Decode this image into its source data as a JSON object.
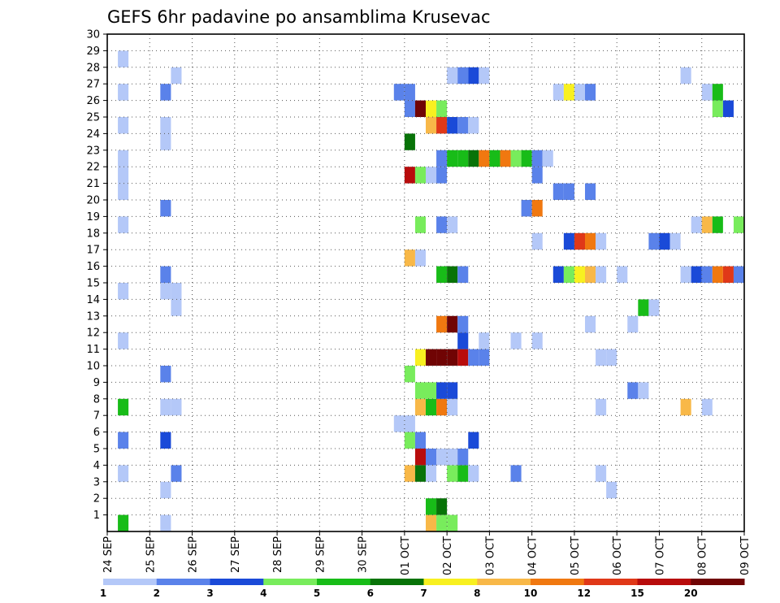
{
  "chart_data": {
    "type": "heatmap",
    "title": "GEFS 6hr padavine po ansamblima Krusevac",
    "xlabel": "",
    "ylabel": "",
    "x_ticks": [
      "24 SEP",
      "25 SEP",
      "26 SEP",
      "27 SEP",
      "28 SEP",
      "29 SEP",
      "30 SEP",
      "01 OCT",
      "02 OCT",
      "03 OCT",
      "04 OCT",
      "05 OCT",
      "06 OCT",
      "07 OCT",
      "08 OCT",
      "09 OCT"
    ],
    "x_range": [
      "24 SEP 00Z",
      "09 OCT 00Z"
    ],
    "time_step": "6hr",
    "y_ticks": [
      1,
      2,
      3,
      4,
      5,
      6,
      7,
      8,
      9,
      10,
      11,
      12,
      13,
      14,
      15,
      16,
      17,
      18,
      19,
      20,
      21,
      22,
      23,
      24,
      25,
      26,
      27,
      28,
      29,
      30
    ],
    "y_range": [
      0,
      30
    ],
    "grid": "dotted",
    "colorbar": {
      "labels": [
        "1",
        "2",
        "3",
        "4",
        "5",
        "6",
        "7",
        "8",
        "10",
        "12",
        "15",
        "20"
      ],
      "colors": [
        "#b4c8f8",
        "#5a82ea",
        "#1a4ad8",
        "#78ec5c",
        "#18bc18",
        "#087308",
        "#f8f020",
        "#f8b848",
        "#f07810",
        "#e03818",
        "#b80c0c",
        "#700404"
      ]
    },
    "cells": [
      {
        "step": 1,
        "member": 0,
        "class": 4
      },
      {
        "step": 5,
        "member": 0,
        "class": 0
      },
      {
        "step": 30,
        "member": 0,
        "class": 7
      },
      {
        "step": 31,
        "member": 0,
        "class": 3
      },
      {
        "step": 32,
        "member": 0,
        "class": 3
      },
      {
        "step": 30,
        "member": 1,
        "class": 4
      },
      {
        "step": 31,
        "member": 1,
        "class": 5
      },
      {
        "step": 5,
        "member": 2,
        "class": 0
      },
      {
        "step": 47,
        "member": 2,
        "class": 0
      },
      {
        "step": 1,
        "member": 3,
        "class": 0
      },
      {
        "step": 6,
        "member": 3,
        "class": 1
      },
      {
        "step": 28,
        "member": 3,
        "class": 7
      },
      {
        "step": 29,
        "member": 3,
        "class": 5
      },
      {
        "step": 30,
        "member": 3,
        "class": 0
      },
      {
        "step": 32,
        "member": 3,
        "class": 3
      },
      {
        "step": 33,
        "member": 3,
        "class": 4
      },
      {
        "step": 34,
        "member": 3,
        "class": 0
      },
      {
        "step": 38,
        "member": 3,
        "class": 1
      },
      {
        "step": 46,
        "member": 3,
        "class": 0
      },
      {
        "step": 29,
        "member": 4,
        "class": 10
      },
      {
        "step": 30,
        "member": 4,
        "class": 1
      },
      {
        "step": 31,
        "member": 4,
        "class": 0
      },
      {
        "step": 32,
        "member": 4,
        "class": 0
      },
      {
        "step": 33,
        "member": 4,
        "class": 1
      },
      {
        "step": 1,
        "member": 5,
        "class": 1
      },
      {
        "step": 5,
        "member": 5,
        "class": 2
      },
      {
        "step": 28,
        "member": 5,
        "class": 3
      },
      {
        "step": 29,
        "member": 5,
        "class": 1
      },
      {
        "step": 34,
        "member": 5,
        "class": 2
      },
      {
        "step": 27,
        "member": 6,
        "class": 0
      },
      {
        "step": 28,
        "member": 6,
        "class": 0
      },
      {
        "step": 1,
        "member": 7,
        "class": 4
      },
      {
        "step": 5,
        "member": 7,
        "class": 0
      },
      {
        "step": 6,
        "member": 7,
        "class": 0
      },
      {
        "step": 29,
        "member": 7,
        "class": 7
      },
      {
        "step": 30,
        "member": 7,
        "class": 4
      },
      {
        "step": 31,
        "member": 7,
        "class": 8
      },
      {
        "step": 32,
        "member": 7,
        "class": 0
      },
      {
        "step": 46,
        "member": 7,
        "class": 0
      },
      {
        "step": 54,
        "member": 7,
        "class": 7
      },
      {
        "step": 56,
        "member": 7,
        "class": 0
      },
      {
        "step": 29,
        "member": 8,
        "class": 3
      },
      {
        "step": 30,
        "member": 8,
        "class": 3
      },
      {
        "step": 31,
        "member": 8,
        "class": 2
      },
      {
        "step": 32,
        "member": 8,
        "class": 2
      },
      {
        "step": 49,
        "member": 8,
        "class": 1
      },
      {
        "step": 50,
        "member": 8,
        "class": 0
      },
      {
        "step": 5,
        "member": 9,
        "class": 1
      },
      {
        "step": 28,
        "member": 9,
        "class": 3
      },
      {
        "step": 29,
        "member": 10,
        "class": 6
      },
      {
        "step": 30,
        "member": 10,
        "class": 11
      },
      {
        "step": 31,
        "member": 10,
        "class": 11
      },
      {
        "step": 32,
        "member": 10,
        "class": 11
      },
      {
        "step": 33,
        "member": 10,
        "class": 10
      },
      {
        "step": 34,
        "member": 10,
        "class": 1
      },
      {
        "step": 35,
        "member": 10,
        "class": 1
      },
      {
        "step": 46,
        "member": 10,
        "class": 0
      },
      {
        "step": 47,
        "member": 10,
        "class": 0
      },
      {
        "step": 1,
        "member": 11,
        "class": 0
      },
      {
        "step": 33,
        "member": 11,
        "class": 2
      },
      {
        "step": 35,
        "member": 11,
        "class": 0
      },
      {
        "step": 38,
        "member": 11,
        "class": 0
      },
      {
        "step": 40,
        "member": 11,
        "class": 0
      },
      {
        "step": 31,
        "member": 12,
        "class": 8
      },
      {
        "step": 32,
        "member": 12,
        "class": 11
      },
      {
        "step": 33,
        "member": 12,
        "class": 1
      },
      {
        "step": 45,
        "member": 12,
        "class": 0
      },
      {
        "step": 49,
        "member": 12,
        "class": 0
      },
      {
        "step": 6,
        "member": 13,
        "class": 0
      },
      {
        "step": 50,
        "member": 13,
        "class": 4
      },
      {
        "step": 51,
        "member": 13,
        "class": 0
      },
      {
        "step": 1,
        "member": 14,
        "class": 0
      },
      {
        "step": 5,
        "member": 14,
        "class": 0
      },
      {
        "step": 6,
        "member": 14,
        "class": 0
      },
      {
        "step": 5,
        "member": 15,
        "class": 1
      },
      {
        "step": 31,
        "member": 15,
        "class": 4
      },
      {
        "step": 32,
        "member": 15,
        "class": 5
      },
      {
        "step": 33,
        "member": 15,
        "class": 1
      },
      {
        "step": 42,
        "member": 15,
        "class": 2
      },
      {
        "step": 43,
        "member": 15,
        "class": 3
      },
      {
        "step": 44,
        "member": 15,
        "class": 6
      },
      {
        "step": 45,
        "member": 15,
        "class": 7
      },
      {
        "step": 46,
        "member": 15,
        "class": 0
      },
      {
        "step": 48,
        "member": 15,
        "class": 0
      },
      {
        "step": 54,
        "member": 15,
        "class": 0
      },
      {
        "step": 55,
        "member": 15,
        "class": 2
      },
      {
        "step": 56,
        "member": 15,
        "class": 1
      },
      {
        "step": 57,
        "member": 15,
        "class": 8
      },
      {
        "step": 58,
        "member": 15,
        "class": 9
      },
      {
        "step": 59,
        "member": 15,
        "class": 1
      },
      {
        "step": 28,
        "member": 16,
        "class": 7
      },
      {
        "step": 29,
        "member": 16,
        "class": 0
      },
      {
        "step": 40,
        "member": 17,
        "class": 0
      },
      {
        "step": 43,
        "member": 17,
        "class": 2
      },
      {
        "step": 44,
        "member": 17,
        "class": 9
      },
      {
        "step": 45,
        "member": 17,
        "class": 8
      },
      {
        "step": 46,
        "member": 17,
        "class": 0
      },
      {
        "step": 51,
        "member": 17,
        "class": 1
      },
      {
        "step": 52,
        "member": 17,
        "class": 2
      },
      {
        "step": 53,
        "member": 17,
        "class": 0
      },
      {
        "step": 1,
        "member": 18,
        "class": 0
      },
      {
        "step": 29,
        "member": 18,
        "class": 3
      },
      {
        "step": 31,
        "member": 18,
        "class": 1
      },
      {
        "step": 32,
        "member": 18,
        "class": 0
      },
      {
        "step": 55,
        "member": 18,
        "class": 0
      },
      {
        "step": 56,
        "member": 18,
        "class": 7
      },
      {
        "step": 57,
        "member": 18,
        "class": 4
      },
      {
        "step": 59,
        "member": 18,
        "class": 3
      },
      {
        "step": 5,
        "member": 19,
        "class": 1
      },
      {
        "step": 39,
        "member": 19,
        "class": 1
      },
      {
        "step": 40,
        "member": 19,
        "class": 8
      },
      {
        "step": 1,
        "member": 20,
        "class": 0
      },
      {
        "step": 42,
        "member": 20,
        "class": 1
      },
      {
        "step": 43,
        "member": 20,
        "class": 1
      },
      {
        "step": 45,
        "member": 20,
        "class": 1
      },
      {
        "step": 1,
        "member": 21,
        "class": 0
      },
      {
        "step": 28,
        "member": 21,
        "class": 10
      },
      {
        "step": 29,
        "member": 21,
        "class": 3
      },
      {
        "step": 30,
        "member": 21,
        "class": 0
      },
      {
        "step": 31,
        "member": 21,
        "class": 1
      },
      {
        "step": 40,
        "member": 21,
        "class": 1
      },
      {
        "step": 1,
        "member": 22,
        "class": 0
      },
      {
        "step": 31,
        "member": 22,
        "class": 1
      },
      {
        "step": 32,
        "member": 22,
        "class": 4
      },
      {
        "step": 33,
        "member": 22,
        "class": 4
      },
      {
        "step": 34,
        "member": 22,
        "class": 5
      },
      {
        "step": 35,
        "member": 22,
        "class": 8
      },
      {
        "step": 36,
        "member": 22,
        "class": 4
      },
      {
        "step": 37,
        "member": 22,
        "class": 8
      },
      {
        "step": 38,
        "member": 22,
        "class": 3
      },
      {
        "step": 39,
        "member": 22,
        "class": 4
      },
      {
        "step": 40,
        "member": 22,
        "class": 1
      },
      {
        "step": 41,
        "member": 22,
        "class": 0
      },
      {
        "step": 5,
        "member": 23,
        "class": 0
      },
      {
        "step": 28,
        "member": 23,
        "class": 5
      },
      {
        "step": 1,
        "member": 24,
        "class": 0
      },
      {
        "step": 5,
        "member": 24,
        "class": 0
      },
      {
        "step": 30,
        "member": 24,
        "class": 7
      },
      {
        "step": 31,
        "member": 24,
        "class": 9
      },
      {
        "step": 32,
        "member": 24,
        "class": 2
      },
      {
        "step": 33,
        "member": 24,
        "class": 1
      },
      {
        "step": 34,
        "member": 24,
        "class": 0
      },
      {
        "step": 28,
        "member": 25,
        "class": 1
      },
      {
        "step": 29,
        "member": 25,
        "class": 11
      },
      {
        "step": 30,
        "member": 25,
        "class": 6
      },
      {
        "step": 31,
        "member": 25,
        "class": 3
      },
      {
        "step": 57,
        "member": 25,
        "class": 3
      },
      {
        "step": 58,
        "member": 25,
        "class": 2
      },
      {
        "step": 1,
        "member": 26,
        "class": 0
      },
      {
        "step": 5,
        "member": 26,
        "class": 1
      },
      {
        "step": 27,
        "member": 26,
        "class": 1
      },
      {
        "step": 28,
        "member": 26,
        "class": 1
      },
      {
        "step": 42,
        "member": 26,
        "class": 0
      },
      {
        "step": 43,
        "member": 26,
        "class": 6
      },
      {
        "step": 44,
        "member": 26,
        "class": 0
      },
      {
        "step": 45,
        "member": 26,
        "class": 1
      },
      {
        "step": 56,
        "member": 26,
        "class": 0
      },
      {
        "step": 57,
        "member": 26,
        "class": 4
      },
      {
        "step": 6,
        "member": 27,
        "class": 0
      },
      {
        "step": 32,
        "member": 27,
        "class": 0
      },
      {
        "step": 33,
        "member": 27,
        "class": 1
      },
      {
        "step": 34,
        "member": 27,
        "class": 2
      },
      {
        "step": 35,
        "member": 27,
        "class": 0
      },
      {
        "step": 54,
        "member": 27,
        "class": 0
      },
      {
        "step": 1,
        "member": 28,
        "class": 0
      }
    ]
  }
}
